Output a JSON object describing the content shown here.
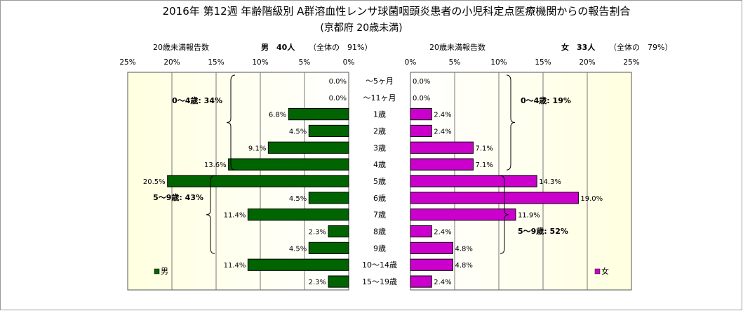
{
  "chart_data": {
    "type": "bar",
    "orientation": "horizontal",
    "layout": "population-pyramid",
    "title": "2016年 第12週 年齢階級別 A群溶血性レンサ球菌咽頭炎患者の小児科定点医療機関からの報告割合",
    "subtitle": "(京都府 20歳未満)",
    "categories": [
      "～5ヶ月",
      "～11ヶ月",
      "1歳",
      "2歳",
      "3歳",
      "4歳",
      "5歳",
      "6歳",
      "7歳",
      "8歳",
      "9歳",
      "10～14歳",
      "15～19歳"
    ],
    "xlim": [
      0,
      25
    ],
    "ticks": [
      "0%",
      "5%",
      "10%",
      "15%",
      "20%",
      "25%"
    ],
    "grid": true,
    "legend_position": "bottom",
    "series": [
      {
        "name": "男",
        "side": "left",
        "color": "#006400",
        "header_label": "20歳未満報告数",
        "header_count": "男　40人",
        "header_share": "（全体の　91%）",
        "values": [
          0.0,
          0.0,
          6.8,
          4.5,
          9.1,
          13.6,
          20.5,
          4.5,
          11.4,
          2.3,
          4.5,
          11.4,
          2.3
        ],
        "value_labels": [
          "0.0%",
          "0.0%",
          "6.8%",
          "4.5%",
          "9.1%",
          "13.6%",
          "20.5%",
          "4.5%",
          "11.4%",
          "2.3%",
          "4.5%",
          "11.4%",
          "2.3%"
        ],
        "group_annotations": [
          {
            "label": "0～4歳: 34%",
            "from_index": 0,
            "to_index": 5
          },
          {
            "label": "5～9歳: 43%",
            "from_index": 6,
            "to_index": 10
          }
        ]
      },
      {
        "name": "女",
        "side": "right",
        "color": "#CC00CC",
        "header_label": "20歳未満報告数",
        "header_count": "女　33人",
        "header_share": "（全体の　79%）",
        "values": [
          0.0,
          0.0,
          2.4,
          2.4,
          7.1,
          7.1,
          14.3,
          19.0,
          11.9,
          2.4,
          4.8,
          4.8,
          2.4
        ],
        "value_labels": [
          "0.0%",
          "0.0%",
          "2.4%",
          "2.4%",
          "7.1%",
          "7.1%",
          "14.3%",
          "19.0%",
          "11.9%",
          "2.4%",
          "4.8%",
          "4.8%",
          "2.4%"
        ],
        "group_annotations": [
          {
            "label": "0～4歳: 19%",
            "from_index": 0,
            "to_index": 5
          },
          {
            "label": "5～9歳: 52%",
            "from_index": 6,
            "to_index": 10
          }
        ]
      }
    ]
  }
}
